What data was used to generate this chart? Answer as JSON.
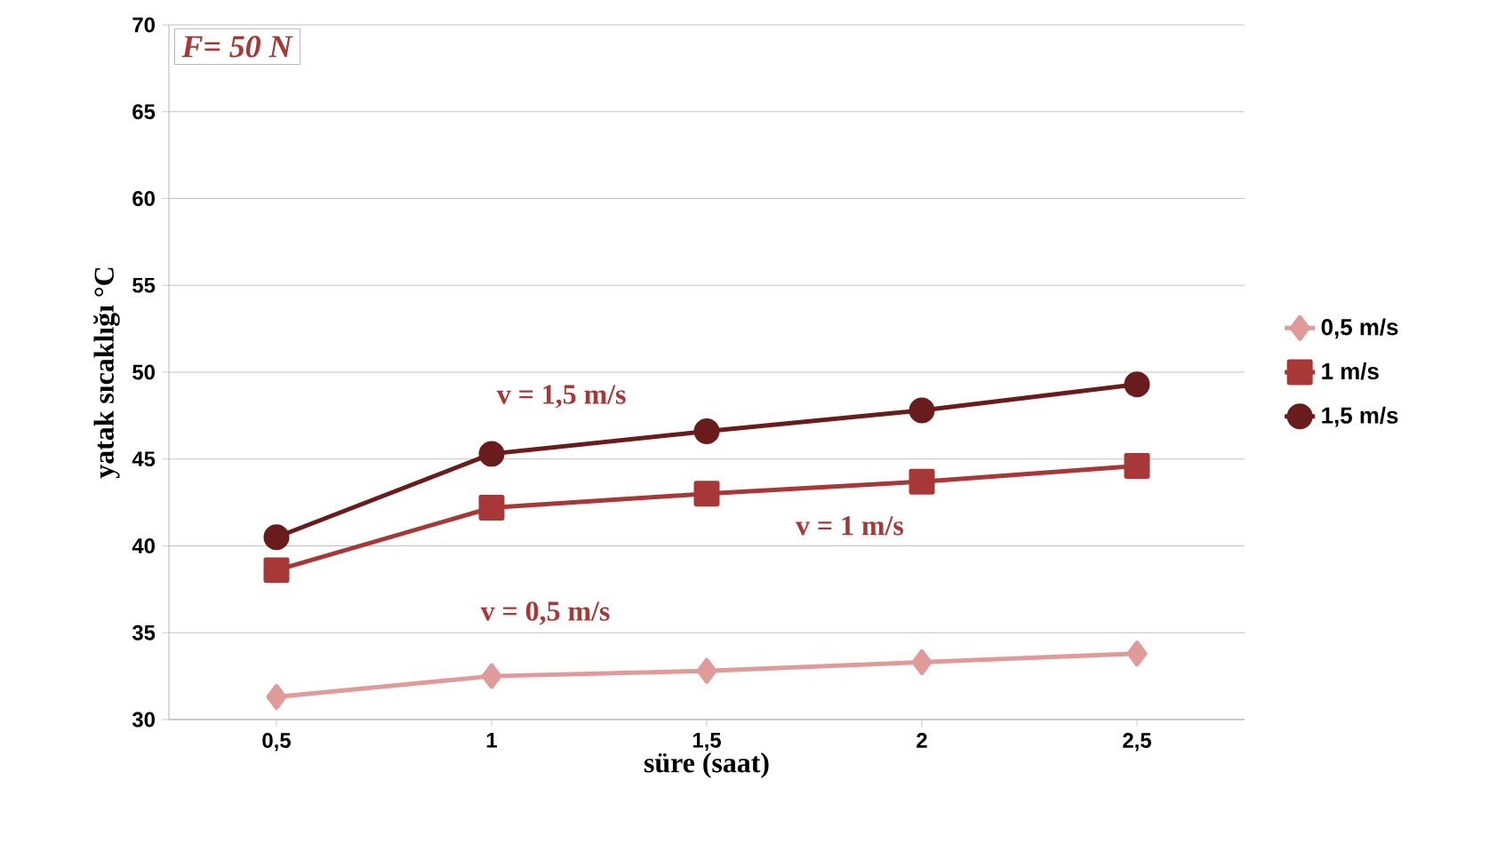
{
  "chart_data": {
    "type": "line",
    "xlabel": "süre (saat)",
    "ylabel": "yatak sıcaklığı °C",
    "categories": [
      "0,5",
      "1",
      "1,5",
      "2",
      "2,5"
    ],
    "series": [
      {
        "name": "0,5 m/s",
        "color": "#e09a9a",
        "marker": "diamond",
        "values": [
          31.3,
          32.5,
          32.8,
          33.3,
          33.8
        ]
      },
      {
        "name": "1 m/s",
        "color": "#a83838",
        "marker": "square",
        "values": [
          38.6,
          42.2,
          43.0,
          43.7,
          44.6
        ]
      },
      {
        "name": "1,5 m/s",
        "color": "#6a1c1c",
        "marker": "circle",
        "values": [
          40.5,
          45.3,
          46.6,
          47.8,
          49.3
        ]
      }
    ],
    "ylim": [
      30,
      70
    ],
    "yticks": [
      30,
      35,
      40,
      45,
      50,
      55,
      60,
      65,
      70
    ],
    "grid": "y",
    "legend": "right",
    "line_style": "solid",
    "annotations": [
      "*F= 50 N*",
      "v = 1,5 m/s",
      "v = 1 m/s",
      "v = 0,5 m/s"
    ]
  }
}
